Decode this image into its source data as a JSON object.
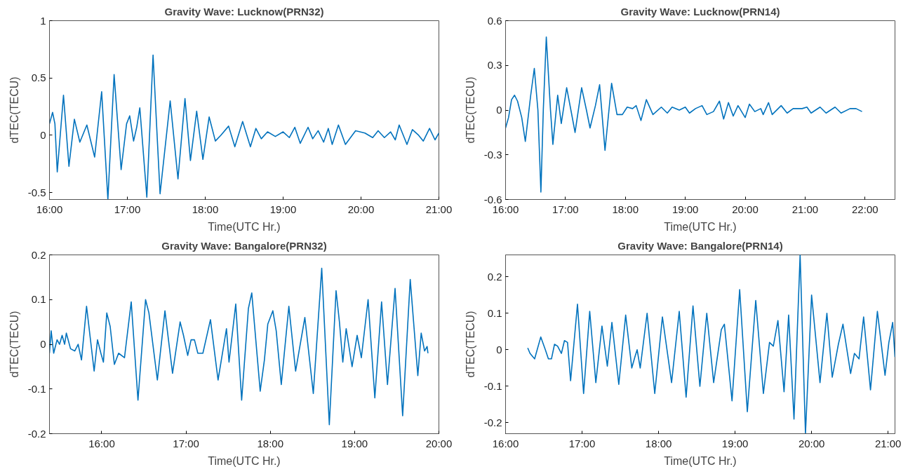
{
  "chart_data": [
    {
      "type": "line",
      "title": "Gravity Wave: Lucknow(PRN32)",
      "xlabel": "Time(UTC Hr.)",
      "ylabel": "dTEC(TECU)",
      "color": "#0072bd",
      "grid": false,
      "xlim": [
        16,
        21
      ],
      "ylim": [
        -0.56,
        1
      ],
      "xticks": [
        {
          "value": 16,
          "label": "16:00"
        },
        {
          "value": 17,
          "label": "17:00"
        },
        {
          "value": 18,
          "label": "18:00"
        },
        {
          "value": 19,
          "label": "19:00"
        },
        {
          "value": 20,
          "label": "20:00"
        },
        {
          "value": 21,
          "label": "21:00"
        }
      ],
      "yticks": [
        {
          "value": -0.5,
          "label": "-0.5"
        },
        0,
        0.5,
        1
      ],
      "x": [
        16.0,
        16.04,
        16.07,
        16.1,
        16.18,
        16.25,
        16.32,
        16.39,
        16.48,
        16.58,
        16.67,
        16.75,
        16.83,
        16.92,
        16.99,
        17.03,
        17.08,
        17.12,
        17.16,
        17.25,
        17.33,
        17.42,
        17.55,
        17.65,
        17.74,
        17.81,
        17.89,
        17.97,
        18.05,
        18.13,
        18.2,
        18.3,
        18.38,
        18.48,
        18.58,
        18.65,
        18.72,
        18.8,
        18.9,
        19.0,
        19.08,
        19.15,
        19.22,
        19.32,
        19.38,
        19.45,
        19.52,
        19.58,
        19.63,
        19.71,
        19.8,
        19.93,
        20.05,
        20.15,
        20.22,
        20.3,
        20.38,
        20.44,
        20.49,
        20.59,
        20.66,
        20.74,
        20.8,
        20.88,
        20.95,
        21.0
      ],
      "values": [
        0.1,
        0.2,
        0.1,
        -0.32,
        0.35,
        -0.27,
        0.14,
        -0.06,
        0.09,
        -0.19,
        0.38,
        -0.56,
        0.53,
        -0.3,
        0.1,
        0.17,
        -0.05,
        0.07,
        0.24,
        -0.54,
        0.7,
        -0.51,
        0.3,
        -0.38,
        0.32,
        -0.22,
        0.21,
        -0.21,
        0.16,
        -0.05,
        0.0,
        0.08,
        -0.1,
        0.12,
        -0.1,
        0.06,
        -0.03,
        0.03,
        -0.01,
        0.03,
        -0.02,
        0.07,
        -0.07,
        0.07,
        -0.03,
        0.04,
        -0.06,
        0.06,
        -0.08,
        0.09,
        -0.08,
        0.04,
        0.02,
        -0.02,
        0.04,
        -0.02,
        0.03,
        -0.04,
        0.09,
        -0.08,
        0.05,
        0.0,
        -0.05,
        0.06,
        -0.04,
        0.02
      ]
    },
    {
      "type": "line",
      "title": "Gravity Wave: Lucknow(PRN14)",
      "xlabel": "Time(UTC Hr.)",
      "ylabel": "dTEC(TECU)",
      "color": "#0072bd",
      "grid": false,
      "xlim": [
        16,
        22.5
      ],
      "ylim": [
        -0.6,
        0.6
      ],
      "xticks": [
        {
          "value": 16,
          "label": "16:00"
        },
        {
          "value": 17,
          "label": "17:00"
        },
        {
          "value": 18,
          "label": "18:00"
        },
        {
          "value": 19,
          "label": "19:00"
        },
        {
          "value": 20,
          "label": "20:00"
        },
        {
          "value": 21,
          "label": "21:00"
        },
        {
          "value": 22,
          "label": "22:00"
        }
      ],
      "yticks": [
        -0.6,
        -0.3,
        0,
        0.3,
        0.6
      ],
      "x": [
        16.0,
        16.05,
        16.1,
        16.15,
        16.2,
        16.27,
        16.33,
        16.42,
        16.48,
        16.54,
        16.59,
        16.63,
        16.68,
        16.75,
        16.79,
        16.87,
        16.93,
        17.02,
        17.1,
        17.16,
        17.27,
        17.35,
        17.41,
        17.5,
        17.57,
        17.66,
        17.77,
        17.86,
        17.95,
        18.03,
        18.12,
        18.18,
        18.26,
        18.35,
        18.46,
        18.6,
        18.7,
        18.78,
        18.9,
        19.0,
        19.07,
        19.17,
        19.28,
        19.36,
        19.47,
        19.57,
        19.64,
        19.72,
        19.8,
        19.88,
        20.0,
        20.07,
        20.16,
        20.26,
        20.3,
        20.39,
        20.45,
        20.6,
        20.7,
        20.8,
        20.95,
        21.03,
        21.1,
        21.25,
        21.35,
        21.5,
        21.6,
        21.75,
        21.85,
        21.95
      ],
      "values": [
        -0.12,
        -0.05,
        0.07,
        0.1,
        0.06,
        -0.05,
        -0.21,
        0.1,
        0.28,
        0.0,
        -0.55,
        0.0,
        0.49,
        0.0,
        -0.23,
        0.1,
        -0.09,
        0.15,
        -0.02,
        -0.15,
        0.15,
        0.0,
        -0.12,
        0.03,
        0.17,
        -0.27,
        0.18,
        -0.03,
        -0.03,
        0.02,
        0.01,
        0.03,
        -0.07,
        0.07,
        -0.03,
        0.02,
        -0.02,
        0.02,
        0.0,
        0.02,
        -0.02,
        0.01,
        0.03,
        -0.03,
        -0.01,
        0.06,
        -0.06,
        0.05,
        -0.04,
        0.03,
        -0.05,
        0.04,
        -0.01,
        0.01,
        -0.03,
        0.05,
        -0.03,
        0.03,
        -0.02,
        0.01,
        0.01,
        0.02,
        -0.02,
        0.02,
        -0.02,
        0.02,
        -0.02,
        0.01,
        0.01,
        -0.01
      ]
    },
    {
      "type": "line",
      "title": "Gravity Wave: Bangalore(PRN32)",
      "xlabel": "Time(UTC Hr.)",
      "ylabel": "dTEC(TECU)",
      "color": "#0072bd",
      "grid": false,
      "xlim": [
        15.38,
        20
      ],
      "ylim": [
        -0.2,
        0.2
      ],
      "xticks": [
        {
          "value": 16,
          "label": "16:00"
        },
        {
          "value": 17,
          "label": "17:00"
        },
        {
          "value": 18,
          "label": "18:00"
        },
        {
          "value": 19,
          "label": "19:00"
        },
        {
          "value": 20,
          "label": "20:00"
        }
      ],
      "yticks": [
        -0.2,
        -0.1,
        0,
        0.1,
        0.2
      ],
      "x": [
        15.38,
        15.4,
        15.43,
        15.47,
        15.5,
        15.53,
        15.56,
        15.58,
        15.63,
        15.68,
        15.72,
        15.76,
        15.82,
        15.91,
        15.95,
        15.99,
        16.02,
        16.06,
        16.1,
        16.15,
        16.2,
        16.27,
        16.35,
        16.43,
        16.52,
        16.56,
        16.66,
        16.75,
        16.84,
        16.93,
        16.97,
        17.02,
        17.06,
        17.1,
        17.14,
        17.2,
        17.29,
        17.38,
        17.48,
        17.51,
        17.59,
        17.66,
        17.74,
        17.78,
        17.88,
        17.93,
        17.97,
        18.03,
        18.07,
        18.13,
        18.22,
        18.3,
        18.41,
        18.51,
        18.61,
        18.7,
        18.78,
        18.82,
        18.86,
        18.9,
        18.97,
        19.03,
        19.08,
        19.16,
        19.24,
        19.32,
        19.39,
        19.48,
        19.57,
        19.66,
        19.75,
        19.79,
        19.83,
        19.86,
        19.87
      ],
      "values": [
        -0.02,
        0.03,
        -0.02,
        0.01,
        0.0,
        0.02,
        0.0,
        0.025,
        -0.01,
        -0.015,
        0.0,
        -0.035,
        0.085,
        -0.06,
        0.01,
        -0.02,
        -0.04,
        0.07,
        0.04,
        -0.045,
        -0.02,
        -0.03,
        0.095,
        -0.125,
        0.1,
        0.07,
        -0.08,
        0.075,
        -0.065,
        0.05,
        0.02,
        -0.025,
        0.01,
        0.01,
        -0.02,
        -0.02,
        0.055,
        -0.08,
        0.035,
        -0.04,
        0.09,
        -0.125,
        0.08,
        0.115,
        -0.105,
        -0.035,
        0.045,
        0.075,
        0.03,
        -0.09,
        0.085,
        -0.06,
        0.06,
        -0.11,
        0.17,
        -0.18,
        0.12,
        0.05,
        -0.04,
        0.035,
        -0.05,
        0.02,
        -0.03,
        0.1,
        -0.12,
        0.095,
        -0.09,
        0.125,
        -0.16,
        0.145,
        -0.07,
        0.025,
        -0.015,
        -0.005,
        -0.02
      ]
    },
    {
      "type": "line",
      "title": "Gravity Wave: Bangalore(PRN14)",
      "xlabel": "Time(UTC Hr.)",
      "ylabel": "dTEC(TECU)",
      "color": "#0072bd",
      "grid": false,
      "xlim": [
        16,
        21.09
      ],
      "ylim": [
        -0.23,
        0.26
      ],
      "xticks": [
        {
          "value": 16,
          "label": "16:00"
        },
        {
          "value": 17,
          "label": "17:00"
        },
        {
          "value": 18,
          "label": "18:00"
        },
        {
          "value": 19,
          "label": "19:00"
        },
        {
          "value": 20,
          "label": "20:00"
        },
        {
          "value": 21,
          "label": "21:00"
        }
      ],
      "yticks": [
        -0.2,
        -0.1,
        0,
        0.1,
        0.2
      ],
      "x": [
        16.29,
        16.32,
        16.38,
        16.46,
        16.52,
        16.56,
        16.6,
        16.64,
        16.68,
        16.73,
        16.77,
        16.81,
        16.85,
        16.94,
        17.02,
        17.1,
        17.18,
        17.26,
        17.33,
        17.39,
        17.48,
        17.57,
        17.65,
        17.69,
        17.72,
        17.76,
        17.85,
        17.95,
        18.05,
        18.17,
        18.27,
        18.36,
        18.45,
        18.54,
        18.63,
        18.72,
        18.82,
        18.86,
        18.96,
        19.06,
        19.16,
        19.27,
        19.37,
        19.45,
        19.5,
        19.56,
        19.64,
        19.7,
        19.77,
        19.85,
        19.92,
        20.0,
        20.11,
        20.2,
        20.27,
        20.35,
        20.41,
        20.51,
        20.56,
        20.62,
        20.68,
        20.77,
        20.86,
        20.96,
        21.01,
        21.06,
        21.09
      ],
      "values": [
        0.005,
        -0.01,
        -0.025,
        0.035,
        0.0,
        -0.025,
        -0.025,
        0.015,
        0.01,
        -0.01,
        0.025,
        0.02,
        -0.085,
        0.125,
        -0.12,
        0.105,
        -0.09,
        0.065,
        -0.045,
        0.075,
        -0.095,
        0.095,
        -0.05,
        -0.02,
        0.0,
        -0.05,
        0.1,
        -0.12,
        0.09,
        -0.09,
        0.105,
        -0.13,
        0.12,
        -0.1,
        0.1,
        -0.09,
        0.055,
        0.07,
        -0.14,
        0.165,
        -0.17,
        0.135,
        -0.12,
        0.02,
        0.01,
        0.08,
        -0.115,
        0.095,
        -0.19,
        0.26,
        -0.23,
        0.15,
        -0.09,
        0.1,
        -0.075,
        0.015,
        0.07,
        -0.065,
        -0.01,
        -0.025,
        0.09,
        -0.11,
        0.105,
        -0.07,
        0.02,
        0.075,
        -0.02
      ]
    }
  ]
}
